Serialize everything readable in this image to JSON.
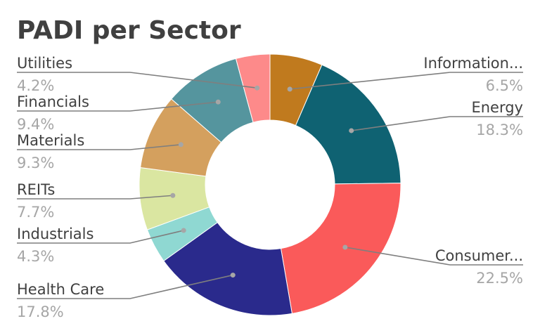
{
  "chart_data": {
    "type": "pie",
    "title": "PADI per Sector",
    "slices": [
      {
        "label": "Information...",
        "value": 6.5,
        "pct_label": "6.5%",
        "color": "#c07a1e"
      },
      {
        "label": "Energy",
        "value": 18.3,
        "pct_label": "18.3%",
        "color": "#0f6272"
      },
      {
        "label": "Consumer...",
        "value": 22.5,
        "pct_label": "22.5%",
        "color": "#fa5a5a"
      },
      {
        "label": "Health Care",
        "value": 17.8,
        "pct_label": "17.8%",
        "color": "#2a2a8c"
      },
      {
        "label": "Industrials",
        "value": 4.3,
        "pct_label": "4.3%",
        "color": "#8fd8d2"
      },
      {
        "label": "REITs",
        "value": 7.7,
        "pct_label": "7.7%",
        "color": "#dae6a1"
      },
      {
        "label": "Materials",
        "value": 9.3,
        "pct_label": "9.3%",
        "color": "#d4a05e"
      },
      {
        "label": "Financials",
        "value": 9.4,
        "pct_label": "9.4%",
        "color": "#55959e"
      },
      {
        "label": "Utilities",
        "value": 4.2,
        "pct_label": "4.2%",
        "color": "#fd8a8a"
      }
    ],
    "legend": "none"
  }
}
